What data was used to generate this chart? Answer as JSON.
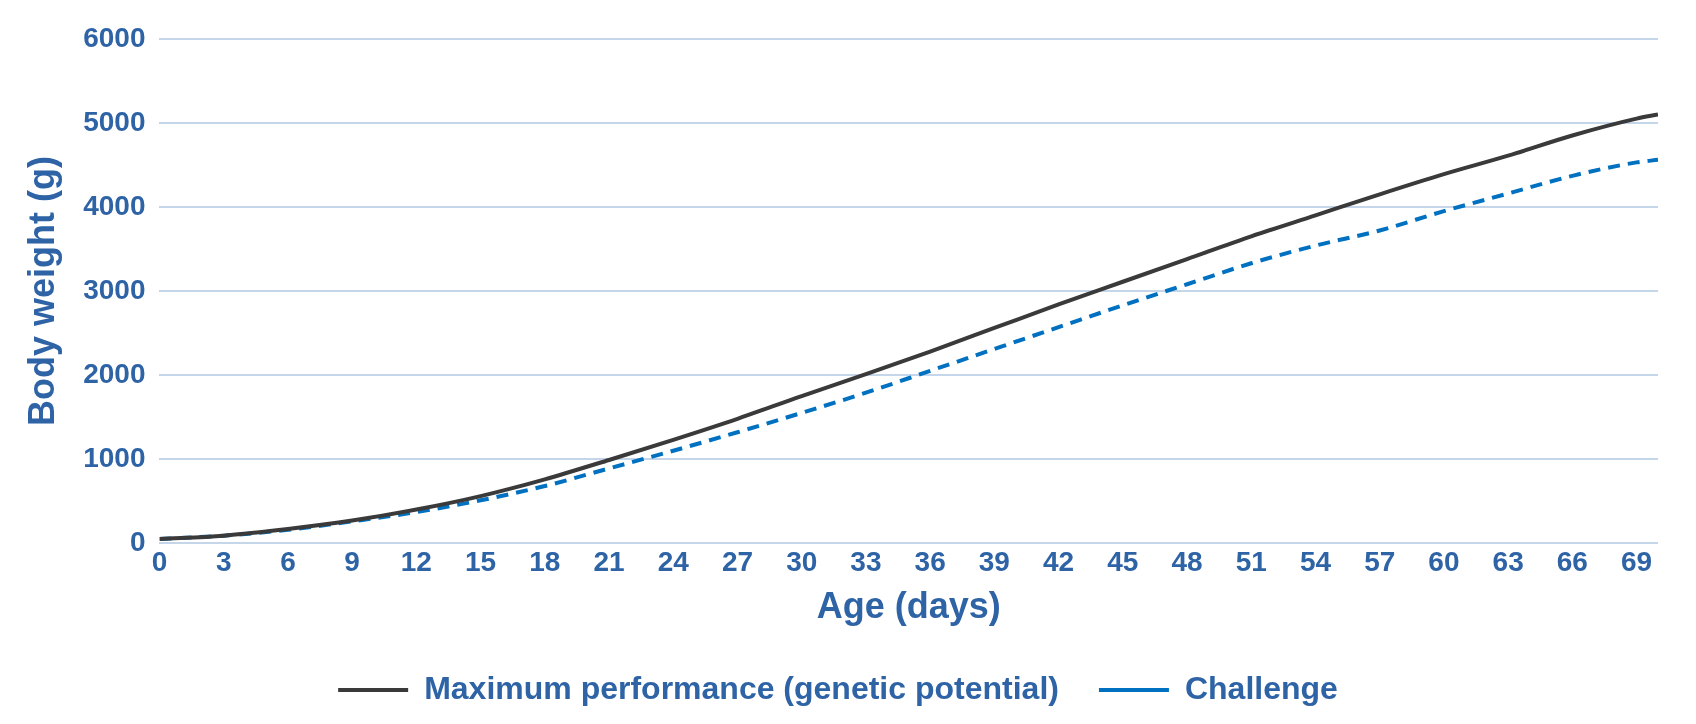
{
  "chart_data": {
    "type": "line",
    "xlabel": "Age (days)",
    "ylabel": "Body weight (g)",
    "x": [
      0,
      3,
      6,
      9,
      12,
      15,
      18,
      21,
      24,
      27,
      30,
      33,
      36,
      39,
      42,
      45,
      48,
      51,
      54,
      57,
      60,
      63,
      66,
      69,
      70
    ],
    "series": [
      {
        "name": "Maximum performance (genetic potential)",
        "color": "#3a3a3a",
        "line_style": "solid",
        "values": [
          50,
          90,
          170,
          270,
          400,
          560,
          760,
          990,
          1230,
          1480,
          1750,
          2010,
          2280,
          2560,
          2840,
          3110,
          3380,
          3650,
          3900,
          4150,
          4390,
          4610,
          4850,
          5050,
          5100
        ]
      },
      {
        "name": "Challenge",
        "color": "#0070c0",
        "line_style": "dashed",
        "values": [
          50,
          90,
          160,
          260,
          370,
          510,
          680,
          890,
          1100,
          1320,
          1550,
          1790,
          2050,
          2310,
          2570,
          2830,
          3080,
          3330,
          3540,
          3720,
          3950,
          4160,
          4370,
          4530,
          4560
        ]
      }
    ],
    "xlim": [
      0,
      70
    ],
    "xticks": [
      0,
      3,
      6,
      9,
      12,
      15,
      18,
      21,
      24,
      27,
      30,
      33,
      36,
      39,
      42,
      45,
      48,
      51,
      54,
      57,
      60,
      63,
      66,
      69
    ],
    "ylim": [
      0,
      6000
    ],
    "yticks": [
      0,
      1000,
      2000,
      3000,
      4000,
      5000,
      6000
    ],
    "grid": "y",
    "legend": "bottom",
    "marker": "none"
  }
}
